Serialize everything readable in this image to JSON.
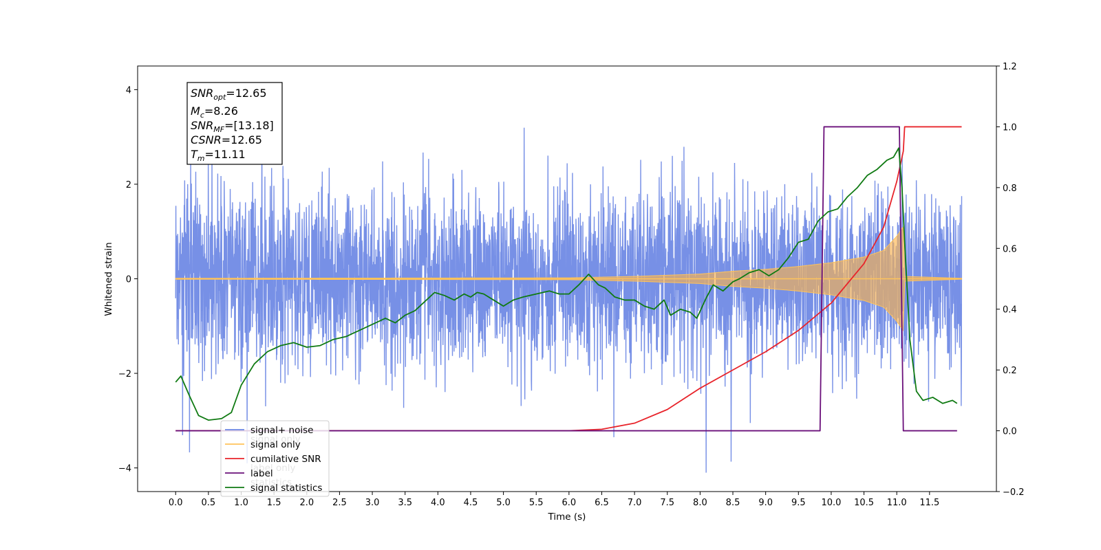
{
  "chart_data": {
    "type": "line",
    "xlabel": "Time (s)",
    "ylabel_left": "Whitened strain",
    "ylabel_right": "",
    "xlim": [
      -0.58,
      12.52
    ],
    "ylim_left": [
      -4.5,
      4.5
    ],
    "ylim_right": [
      -0.2,
      1.2
    ],
    "x_ticks": [
      0.0,
      0.5,
      1.0,
      1.5,
      2.0,
      2.5,
      3.0,
      3.5,
      4.0,
      4.5,
      5.0,
      5.5,
      6.0,
      6.5,
      7.0,
      7.5,
      8.0,
      8.5,
      9.0,
      9.5,
      10.0,
      10.5,
      11.0,
      11.5
    ],
    "y_ticks_left": [
      -4,
      -2,
      0,
      2,
      4
    ],
    "y_ticks_right": [
      -0.2,
      0.0,
      0.2,
      0.4,
      0.6,
      0.8,
      1.0,
      1.2
    ],
    "grid": false,
    "legend_position": "lower-left",
    "series": [
      {
        "name": "signal+ noise",
        "axis": "left",
        "color": "#6b87e4",
        "style": "noise",
        "x_range": [
          0.0,
          11.99
        ],
        "typical_amplitude": 1.3,
        "peak_range": [
          -4.1,
          4.1
        ]
      },
      {
        "name": "signal only",
        "axis": "left",
        "color": "#ffc35a",
        "style": "chirp",
        "x_range": [
          0.0,
          11.99
        ],
        "envelope": [
          [
            0.0,
            0.01
          ],
          [
            6.0,
            0.02
          ],
          [
            7.0,
            0.05
          ],
          [
            8.0,
            0.1
          ],
          [
            8.5,
            0.16
          ],
          [
            9.0,
            0.2
          ],
          [
            9.5,
            0.26
          ],
          [
            10.0,
            0.34
          ],
          [
            10.5,
            0.46
          ],
          [
            10.8,
            0.6
          ],
          [
            11.0,
            0.9
          ],
          [
            11.1,
            1.1
          ],
          [
            11.12,
            0.05
          ],
          [
            11.99,
            0.01
          ]
        ]
      },
      {
        "name": "cumilative SNR",
        "axis": "right",
        "color": "#e8232a",
        "x": [
          0.0,
          6.0,
          6.5,
          7.0,
          7.5,
          8.0,
          8.5,
          9.0,
          9.5,
          10.0,
          10.5,
          10.8,
          11.0,
          11.1,
          11.12,
          11.99
        ],
        "values": [
          0.0,
          0.0,
          0.005,
          0.025,
          0.07,
          0.14,
          0.2,
          0.26,
          0.33,
          0.42,
          0.55,
          0.67,
          0.82,
          0.92,
          1.0,
          1.0
        ]
      },
      {
        "name": "label",
        "axis": "right",
        "color": "#6a0f7a",
        "x": [
          0.0,
          9.83,
          9.89,
          11.04,
          11.1,
          11.92
        ],
        "values": [
          0.0,
          0.0,
          1.0,
          1.0,
          0.0,
          0.0
        ]
      },
      {
        "name": "signal statistics",
        "axis": "right",
        "color": "#0f7a12",
        "x": [
          0.0,
          0.08,
          0.2,
          0.35,
          0.5,
          0.7,
          0.85,
          1.0,
          1.2,
          1.4,
          1.6,
          1.8,
          2.0,
          2.2,
          2.4,
          2.6,
          2.8,
          3.0,
          3.2,
          3.35,
          3.5,
          3.65,
          3.8,
          3.95,
          4.1,
          4.25,
          4.4,
          4.5,
          4.6,
          4.7,
          4.85,
          5.0,
          5.15,
          5.3,
          5.5,
          5.7,
          5.85,
          6.0,
          6.15,
          6.3,
          6.45,
          6.55,
          6.7,
          6.85,
          7.0,
          7.15,
          7.3,
          7.45,
          7.55,
          7.7,
          7.85,
          7.95,
          8.1,
          8.2,
          8.35,
          8.5,
          8.6,
          8.75,
          8.9,
          9.05,
          9.2,
          9.35,
          9.5,
          9.65,
          9.8,
          9.95,
          10.1,
          10.25,
          10.4,
          10.55,
          10.7,
          10.85,
          10.95,
          11.03,
          11.08,
          11.12,
          11.2,
          11.3,
          11.4,
          11.55,
          11.7,
          11.85,
          11.92
        ],
        "values": [
          0.16,
          0.18,
          0.12,
          0.05,
          0.035,
          0.04,
          0.06,
          0.15,
          0.22,
          0.26,
          0.28,
          0.29,
          0.275,
          0.28,
          0.3,
          0.31,
          0.33,
          0.35,
          0.37,
          0.355,
          0.38,
          0.395,
          0.425,
          0.455,
          0.445,
          0.43,
          0.45,
          0.44,
          0.455,
          0.45,
          0.43,
          0.41,
          0.43,
          0.44,
          0.45,
          0.46,
          0.45,
          0.45,
          0.48,
          0.515,
          0.48,
          0.47,
          0.44,
          0.43,
          0.43,
          0.41,
          0.4,
          0.43,
          0.38,
          0.4,
          0.39,
          0.37,
          0.44,
          0.48,
          0.46,
          0.49,
          0.5,
          0.52,
          0.53,
          0.51,
          0.53,
          0.57,
          0.62,
          0.63,
          0.69,
          0.72,
          0.73,
          0.77,
          0.8,
          0.84,
          0.86,
          0.89,
          0.9,
          0.93,
          0.8,
          0.62,
          0.3,
          0.13,
          0.1,
          0.11,
          0.09,
          0.1,
          0.09
        ]
      }
    ],
    "legend_entries": [
      "signal+ noise",
      "signal only",
      "cumilative SNR",
      "label",
      "signal statistics"
    ],
    "ghost_legend_entries": [
      "signal only",
      "label only",
      "statistics"
    ],
    "annotations": {
      "snr_opt": {
        "base": "SNR",
        "sub": "opt",
        "value": "=12.65"
      },
      "mc": {
        "base": "M",
        "sub": "c",
        "value": "=8.26"
      },
      "snr_mf": {
        "base": "SNR",
        "sub": "MF",
        "value": "=[13.18]"
      },
      "csnr": {
        "base": "CSNR",
        "value": "=12.65"
      },
      "tm": {
        "base": "T",
        "sub": "m",
        "value": "=11.11"
      }
    }
  }
}
